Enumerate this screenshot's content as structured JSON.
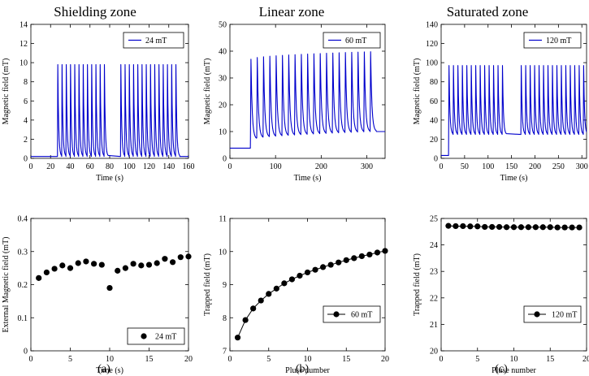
{
  "zone_titles": {
    "shielding": "Shielding zone",
    "linear": "Linear zone",
    "saturated": "Saturated zone"
  },
  "panel_labels": {
    "a": "(a)",
    "b": "(b)",
    "c": "(c)"
  },
  "colors": {
    "trace": "#0000cc",
    "scatter": "#000000"
  },
  "chart_data": [
    {
      "id": "a-top",
      "type": "line",
      "title": "Shielding zone",
      "xlabel": "Time (s)",
      "ylabel": "Magnetic field (mT)",
      "xlim": [
        0,
        160
      ],
      "ylim": [
        0,
        14
      ],
      "xticks": [
        0,
        20,
        40,
        60,
        80,
        100,
        120,
        140,
        160
      ],
      "yticks": [
        0,
        2,
        4,
        6,
        8,
        10,
        12,
        14
      ],
      "legend": "24 mT",
      "legend_marker": "line",
      "trace_model": {
        "baseline": 0.2,
        "pulse_start": 27,
        "pulse_period": 4.3,
        "pulse_groups": [
          [
            27,
            78
          ],
          [
            91,
            147
          ]
        ],
        "peak": 9.8,
        "level_after": 0.2,
        "end": 160
      }
    },
    {
      "id": "b-top",
      "type": "line",
      "title": "Linear zone",
      "xlabel": "Time (s)",
      "ylabel": "Magnetic field (mT)",
      "xlim": [
        0,
        340
      ],
      "ylim": [
        0,
        50
      ],
      "xticks": [
        0,
        100,
        200,
        300
      ],
      "yticks": [
        0,
        10,
        20,
        30,
        40,
        50
      ],
      "legend": "60 mT",
      "legend_marker": "line",
      "trace_model": {
        "baseline": 3.8,
        "pulse_start": 45,
        "pulse_period": 13.8,
        "pulse_count": 20,
        "peak_first": 37,
        "peak_last": 39.8,
        "level_first": 7.2,
        "level_last": 10,
        "end": 340
      }
    },
    {
      "id": "c-top",
      "type": "line",
      "title": "Saturated zone",
      "xlabel": "Time (s)",
      "ylabel": "Magnetic field (mT)",
      "xlim": [
        0,
        310
      ],
      "ylim": [
        0,
        140
      ],
      "xticks": [
        0,
        50,
        100,
        150,
        200,
        250,
        300
      ],
      "yticks": [
        0,
        20,
        40,
        60,
        80,
        100,
        120,
        140
      ],
      "legend": "120 mT",
      "legend_marker": "line",
      "trace_model": {
        "baseline": 3,
        "pulse_start": 16,
        "pulse_period": 9.5,
        "pulse_groups": [
          [
            16,
            136
          ],
          [
            170,
            306
          ]
        ],
        "peak": 97,
        "level": 25,
        "end": 310
      }
    },
    {
      "id": "a-bottom",
      "type": "scatter",
      "xlabel": "Time (s)",
      "ylabel": "External Magnetic field (mT)",
      "xlim": [
        0,
        20
      ],
      "ylim": [
        0,
        0.4
      ],
      "xticks": [
        0,
        5,
        10,
        15,
        20
      ],
      "yticks": [
        0,
        0.1,
        0.2,
        0.3,
        0.4
      ],
      "ytick_labels": [
        "0",
        "0.1",
        "0.2",
        "0.3",
        "0.4"
      ],
      "legend": "24 mT",
      "legend_marker": "dot",
      "connected": false,
      "x": [
        1,
        2,
        3,
        4,
        5,
        6,
        7,
        8,
        9,
        10,
        11,
        12,
        13,
        14,
        15,
        16,
        17,
        18,
        19,
        20
      ],
      "y": [
        0.22,
        0.237,
        0.248,
        0.258,
        0.25,
        0.265,
        0.27,
        0.263,
        0.26,
        0.19,
        0.242,
        0.25,
        0.263,
        0.258,
        0.26,
        0.265,
        0.278,
        0.268,
        0.283,
        0.285
      ]
    },
    {
      "id": "b-bottom",
      "type": "line",
      "xlabel": "Pluse number",
      "ylabel": "Trapped field (mT)",
      "xlim": [
        0,
        20
      ],
      "ylim": [
        7,
        11
      ],
      "xticks": [
        0,
        5,
        10,
        15,
        20
      ],
      "yticks": [
        7,
        8,
        9,
        10,
        11
      ],
      "legend": "60 mT",
      "legend_marker": "line-dot",
      "connected": true,
      "x": [
        1,
        2,
        3,
        4,
        5,
        6,
        7,
        8,
        9,
        10,
        11,
        12,
        13,
        14,
        15,
        16,
        17,
        18,
        19,
        20
      ],
      "y": [
        7.4,
        7.93,
        8.28,
        8.52,
        8.72,
        8.88,
        9.04,
        9.16,
        9.27,
        9.37,
        9.45,
        9.53,
        9.6,
        9.67,
        9.74,
        9.8,
        9.86,
        9.91,
        9.97,
        10.02
      ]
    },
    {
      "id": "c-bottom",
      "type": "line",
      "xlabel": "Pluse number",
      "ylabel": "Trapped field (mT)",
      "xlim": [
        0,
        20
      ],
      "ylim": [
        20,
        25
      ],
      "xticks": [
        0,
        5,
        10,
        15,
        20
      ],
      "yticks": [
        20,
        21,
        22,
        23,
        24,
        25
      ],
      "legend": "120 mT",
      "legend_marker": "line-dot",
      "connected": true,
      "x": [
        1,
        2,
        3,
        4,
        5,
        6,
        7,
        8,
        9,
        10,
        11,
        12,
        13,
        14,
        15,
        16,
        17,
        18,
        19
      ],
      "y": [
        24.72,
        24.71,
        24.71,
        24.7,
        24.7,
        24.68,
        24.68,
        24.68,
        24.67,
        24.67,
        24.67,
        24.67,
        24.67,
        24.67,
        24.67,
        24.66,
        24.66,
        24.66,
        24.66
      ]
    }
  ]
}
